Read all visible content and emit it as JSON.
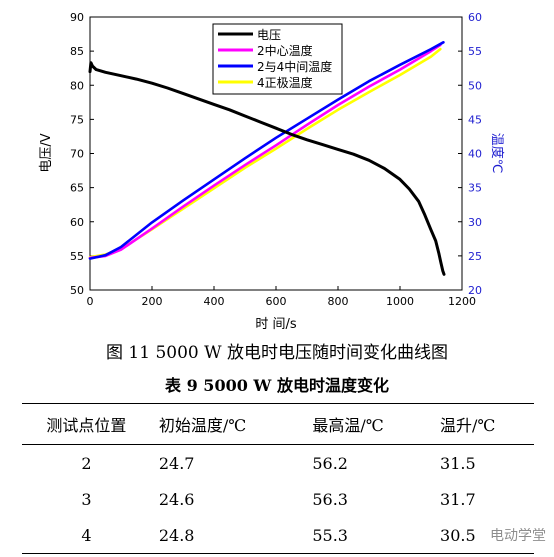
{
  "chart_data": {
    "type": "line",
    "xlabel": "时 间/s",
    "ylabel_left": "电压/V",
    "ylabel_right": "温度℃",
    "xlim": [
      0,
      1200
    ],
    "ylim_left": [
      50,
      90
    ],
    "ylim_right": [
      20,
      60
    ],
    "x_ticks": [
      0,
      200,
      400,
      600,
      800,
      1000,
      1200
    ],
    "y_ticks_left": [
      50,
      55,
      60,
      65,
      70,
      75,
      80,
      85,
      90
    ],
    "y_ticks_right": [
      20,
      25,
      30,
      35,
      40,
      45,
      50,
      55,
      60
    ],
    "grid": false,
    "legend_position": "top-center",
    "series": [
      {
        "name": "电压",
        "axis": "left",
        "color": "#000000",
        "x": [
          0,
          3,
          8,
          20,
          50,
          100,
          150,
          200,
          250,
          300,
          350,
          400,
          450,
          500,
          550,
          600,
          650,
          700,
          750,
          800,
          850,
          900,
          950,
          1000,
          1030,
          1060,
          1080,
          1100,
          1115,
          1125,
          1132,
          1138,
          1142
        ],
        "y": [
          82.0,
          83.3,
          82.8,
          82.3,
          81.9,
          81.4,
          80.9,
          80.3,
          79.6,
          78.8,
          78.0,
          77.2,
          76.4,
          75.5,
          74.6,
          73.7,
          72.8,
          72.0,
          71.3,
          70.6,
          69.9,
          69.0,
          67.8,
          66.2,
          64.8,
          63.0,
          61.0,
          58.8,
          57.2,
          55.4,
          54.0,
          52.8,
          52.3
        ]
      },
      {
        "name": "2中心温度",
        "axis": "right",
        "color": "#ff00ff",
        "x": [
          0,
          50,
          100,
          200,
          300,
          400,
          500,
          600,
          700,
          800,
          900,
          1000,
          1100,
          1130
        ],
        "y": [
          24.7,
          25.0,
          25.9,
          29.0,
          32.2,
          35.3,
          38.3,
          41.2,
          44.2,
          47.1,
          49.8,
          52.3,
          55.0,
          55.9
        ]
      },
      {
        "name": "2与4中间温度",
        "axis": "right",
        "color": "#0000ff",
        "x": [
          0,
          50,
          100,
          200,
          300,
          400,
          500,
          600,
          700,
          800,
          900,
          1000,
          1100,
          1140
        ],
        "y": [
          24.6,
          25.1,
          26.3,
          29.9,
          33.1,
          36.2,
          39.3,
          42.3,
          45.1,
          47.9,
          50.6,
          53.0,
          55.3,
          56.3
        ]
      },
      {
        "name": "4正极温度",
        "axis": "right",
        "color": "#ffff00",
        "x": [
          0,
          50,
          100,
          200,
          300,
          400,
          500,
          600,
          700,
          800,
          900,
          1000,
          1100,
          1130
        ],
        "y": [
          24.8,
          25.2,
          26.0,
          28.9,
          31.9,
          34.9,
          37.9,
          40.7,
          43.6,
          46.4,
          49.0,
          51.5,
          54.2,
          55.3
        ]
      }
    ]
  },
  "figure_caption": "图 11 5000 W 放电时电压随时间变化曲线图",
  "table": {
    "title": "表 9 5000 W 放电时温度变化",
    "headers": [
      "测试点位置",
      "初始温度/℃",
      "最高温/℃",
      "温升/℃"
    ],
    "rows": [
      [
        "2",
        "24.7",
        "56.2",
        "31.5"
      ],
      [
        "3",
        "24.6",
        "56.3",
        "31.7"
      ],
      [
        "4",
        "24.8",
        "55.3",
        "30.5"
      ]
    ]
  },
  "watermark": "电动学堂"
}
